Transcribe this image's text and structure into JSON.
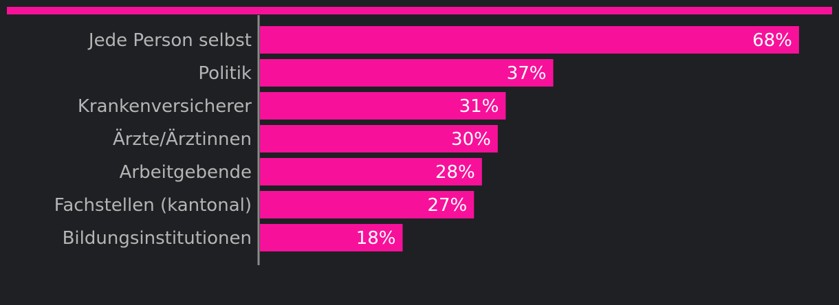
{
  "colors": {
    "background": "#1f2023",
    "accent": "#f7119a",
    "axis": "#8a8a8a",
    "label_text": "#b5b5b5",
    "value_text": "#ffffff"
  },
  "chart_data": {
    "type": "bar",
    "orientation": "horizontal",
    "categories": [
      "Jede Person selbst",
      "Politik",
      "Krankenversicherer",
      "Ärzte/Ärztinnen",
      "Arbeitgebende",
      "Fachstellen (kantonal)",
      "Bildungsinstitutionen"
    ],
    "values": [
      68,
      37,
      31,
      30,
      28,
      27,
      18
    ],
    "value_labels": [
      "68%",
      "37%",
      "31%",
      "30%",
      "28%",
      "27%",
      "18%"
    ],
    "unit": "%",
    "xlim": [
      0,
      72
    ],
    "grid": false,
    "legend": "none"
  }
}
